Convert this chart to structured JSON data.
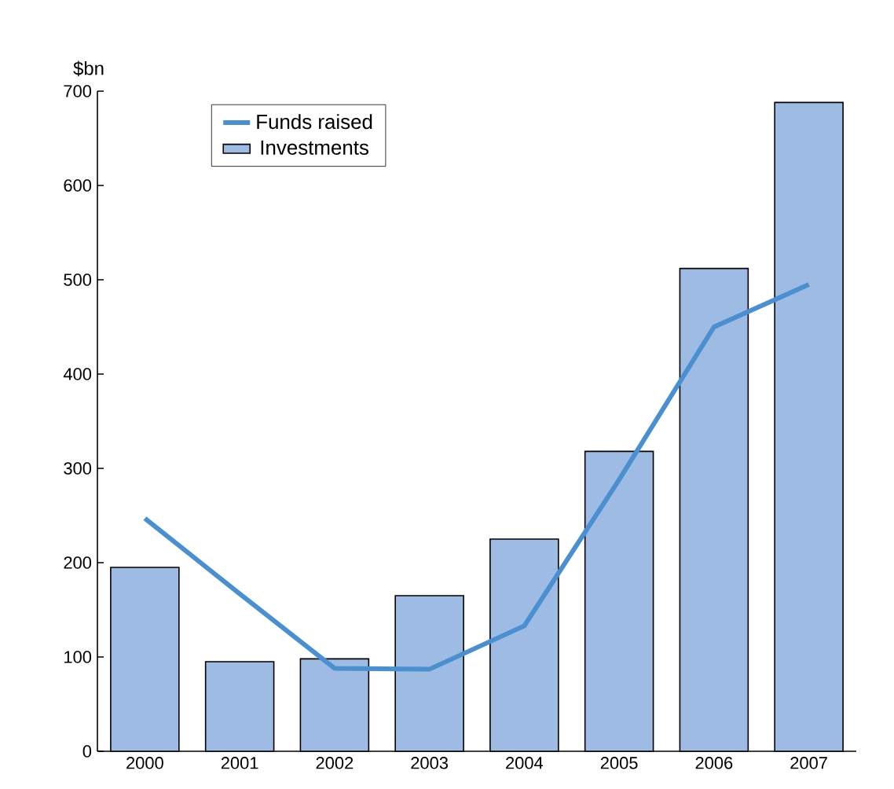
{
  "chart_data": {
    "type": "bar",
    "ylabel": "$bn",
    "categories": [
      "2000",
      "2001",
      "2002",
      "2003",
      "2004",
      "2005",
      "2006",
      "2007"
    ],
    "series": [
      {
        "name": "Investments",
        "color": "#9dbbe3",
        "values": [
          195,
          95,
          98,
          165,
          225,
          318,
          512,
          688
        ]
      },
      {
        "name": "Funds raised",
        "type": "line",
        "color": "#4a90d0",
        "values": [
          247,
          167,
          88,
          87,
          133,
          288,
          450,
          495
        ]
      }
    ],
    "ylim": [
      0,
      700
    ],
    "yticks": [
      0,
      100,
      200,
      300,
      400,
      500,
      600,
      700
    ],
    "legend": "top left"
  }
}
